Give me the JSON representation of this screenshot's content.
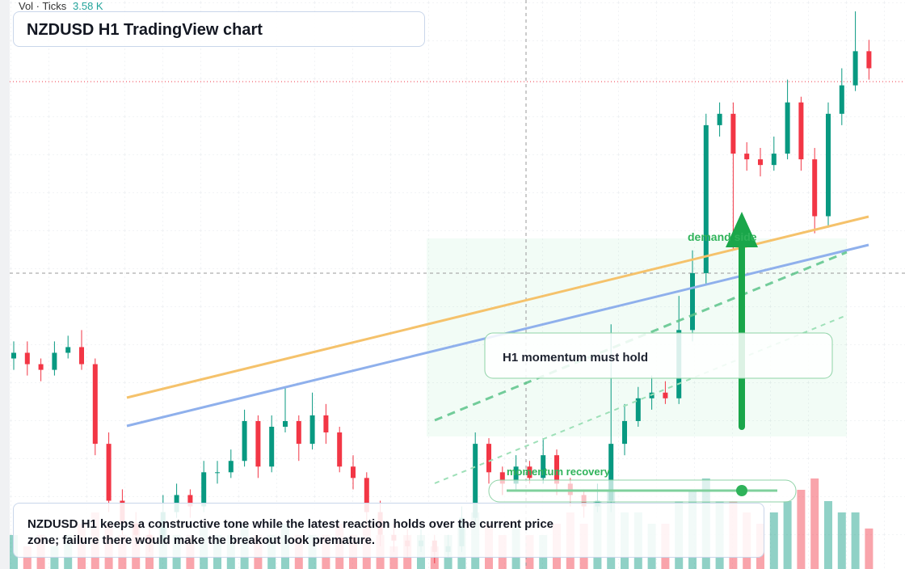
{
  "chart_data": {
    "type": "candlestick",
    "title": "NZDUSD H1 TradingView chart",
    "volume_title": "Vol · Ticks",
    "volume_last": "3.58 K",
    "up_color": "#089981",
    "down_color": "#f23645",
    "ylim": [
      0,
      100
    ],
    "vlim": [
      0,
      10
    ],
    "open": [
      37,
      38,
      36,
      35,
      38,
      39,
      36,
      22,
      12,
      8,
      6,
      5,
      10,
      13,
      11,
      17,
      17,
      19,
      26,
      18,
      25,
      26,
      22,
      27,
      24,
      18,
      16,
      10,
      6,
      5,
      4,
      5,
      3,
      4,
      9,
      22,
      17,
      15,
      18,
      16,
      20,
      15,
      13,
      11,
      12,
      22,
      26,
      30,
      31,
      30,
      42,
      52,
      78,
      80,
      73,
      72,
      71,
      73,
      82,
      72,
      62,
      80,
      85,
      91
    ],
    "high": [
      40,
      40,
      37,
      40,
      41,
      42,
      37,
      24,
      14,
      10,
      7,
      13,
      15,
      14,
      19,
      19,
      21,
      28,
      27,
      27,
      32,
      27,
      31,
      29,
      25,
      20,
      17,
      12,
      8,
      7,
      7,
      6,
      6,
      11,
      24,
      23,
      18,
      20,
      19,
      23,
      21,
      16,
      14,
      15,
      43,
      29,
      32,
      34,
      33,
      48,
      56,
      80,
      82,
      82,
      75,
      74,
      76,
      86,
      83,
      74,
      82,
      88,
      98,
      93
    ],
    "low": [
      35,
      34,
      33,
      34,
      37,
      35,
      20,
      10,
      6,
      4,
      3,
      4,
      9,
      9,
      10,
      15,
      16,
      18,
      16,
      17,
      24,
      19,
      21,
      22,
      17,
      14,
      8,
      4,
      3,
      2,
      3,
      1,
      2,
      3,
      8,
      15,
      13,
      14,
      15,
      15,
      13,
      11,
      9,
      10,
      10,
      20,
      25,
      28,
      29,
      29,
      40,
      50,
      76,
      56,
      70,
      69,
      70,
      72,
      70,
      59,
      60,
      78,
      84,
      86
    ],
    "close": [
      38,
      36,
      35,
      38,
      39,
      36,
      22,
      12,
      8,
      6,
      5,
      10,
      13,
      11,
      17,
      17,
      19,
      26,
      18,
      25,
      26,
      22,
      27,
      24,
      18,
      16,
      10,
      6,
      5,
      4,
      5,
      3,
      4,
      9,
      22,
      17,
      15,
      18,
      16,
      20,
      15,
      13,
      11,
      12,
      22,
      26,
      30,
      31,
      30,
      42,
      52,
      78,
      80,
      73,
      72,
      71,
      73,
      82,
      72,
      62,
      80,
      85,
      91,
      88
    ],
    "volume": [
      3,
      2,
      3,
      2,
      3,
      4,
      5,
      4,
      3,
      4,
      3,
      4,
      3,
      3,
      4,
      3,
      3,
      4,
      3,
      3,
      4,
      3,
      3,
      3,
      4,
      3,
      4,
      3,
      2,
      3,
      3,
      2,
      3,
      4,
      5,
      4,
      3,
      4,
      3,
      3,
      4,
      5,
      4,
      6,
      7,
      5,
      5,
      4,
      4,
      6,
      7,
      8,
      6,
      6,
      5,
      4,
      5,
      6,
      7,
      8,
      6,
      5,
      5,
      3.58
    ],
    "annotations": {
      "zone": "demand side",
      "callout": "H1 momentum must hold",
      "slider": "momentum recovery"
    },
    "note": "NZDUSD H1 keeps a constructive tone while the latest reaction holds over the current price zone; failure there would make the breakout look premature."
  }
}
